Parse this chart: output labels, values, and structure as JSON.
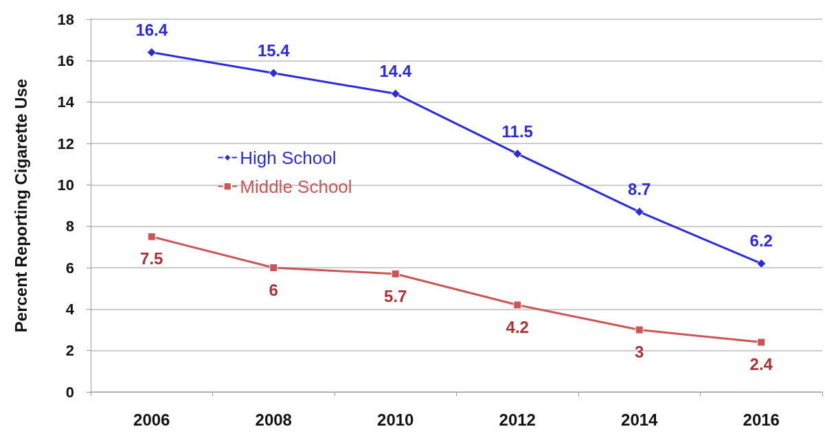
{
  "chart_data": {
    "type": "line",
    "ylabel": "Percent Reporting Cigarette Use",
    "categories": [
      "2006",
      "2008",
      "2010",
      "2012",
      "2014",
      "2016"
    ],
    "series": [
      {
        "name": "High School",
        "color": "#2b2bdc",
        "marker": "diamond",
        "values": [
          16.4,
          15.4,
          14.4,
          11.5,
          8.7,
          6.2
        ]
      },
      {
        "name": "Middle School",
        "color": "#cc5555",
        "marker": "square",
        "values": [
          7.5,
          6,
          5.7,
          4.2,
          3,
          2.4
        ]
      }
    ],
    "ylim": [
      0,
      18
    ],
    "yticks": [
      0,
      2,
      4,
      6,
      8,
      10,
      12,
      14,
      16,
      18
    ],
    "grid": "y",
    "legend": "left",
    "data_labels": true
  }
}
